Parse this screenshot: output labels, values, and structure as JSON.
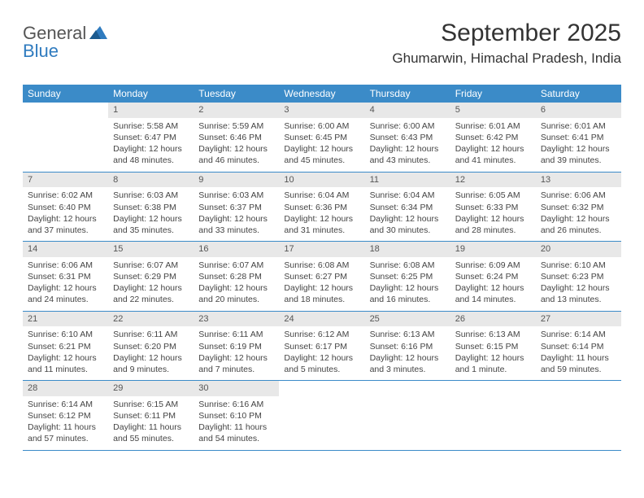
{
  "logo": {
    "text1": "General",
    "text2": "Blue"
  },
  "title": "September 2025",
  "location": "Ghumarwin, Himachal Pradesh, India",
  "colors": {
    "header_bg": "#3b8bc8",
    "header_text": "#ffffff",
    "daynum_bg": "#e8e8e8",
    "border": "#3b8bc8",
    "body_text": "#444444",
    "page_bg": "#ffffff"
  },
  "dayHeaders": [
    "Sunday",
    "Monday",
    "Tuesday",
    "Wednesday",
    "Thursday",
    "Friday",
    "Saturday"
  ],
  "weeks": [
    [
      null,
      {
        "n": "1",
        "sr": "Sunrise: 5:58 AM",
        "ss": "Sunset: 6:47 PM",
        "dl": "Daylight: 12 hours and 48 minutes."
      },
      {
        "n": "2",
        "sr": "Sunrise: 5:59 AM",
        "ss": "Sunset: 6:46 PM",
        "dl": "Daylight: 12 hours and 46 minutes."
      },
      {
        "n": "3",
        "sr": "Sunrise: 6:00 AM",
        "ss": "Sunset: 6:45 PM",
        "dl": "Daylight: 12 hours and 45 minutes."
      },
      {
        "n": "4",
        "sr": "Sunrise: 6:00 AM",
        "ss": "Sunset: 6:43 PM",
        "dl": "Daylight: 12 hours and 43 minutes."
      },
      {
        "n": "5",
        "sr": "Sunrise: 6:01 AM",
        "ss": "Sunset: 6:42 PM",
        "dl": "Daylight: 12 hours and 41 minutes."
      },
      {
        "n": "6",
        "sr": "Sunrise: 6:01 AM",
        "ss": "Sunset: 6:41 PM",
        "dl": "Daylight: 12 hours and 39 minutes."
      }
    ],
    [
      {
        "n": "7",
        "sr": "Sunrise: 6:02 AM",
        "ss": "Sunset: 6:40 PM",
        "dl": "Daylight: 12 hours and 37 minutes."
      },
      {
        "n": "8",
        "sr": "Sunrise: 6:03 AM",
        "ss": "Sunset: 6:38 PM",
        "dl": "Daylight: 12 hours and 35 minutes."
      },
      {
        "n": "9",
        "sr": "Sunrise: 6:03 AM",
        "ss": "Sunset: 6:37 PM",
        "dl": "Daylight: 12 hours and 33 minutes."
      },
      {
        "n": "10",
        "sr": "Sunrise: 6:04 AM",
        "ss": "Sunset: 6:36 PM",
        "dl": "Daylight: 12 hours and 31 minutes."
      },
      {
        "n": "11",
        "sr": "Sunrise: 6:04 AM",
        "ss": "Sunset: 6:34 PM",
        "dl": "Daylight: 12 hours and 30 minutes."
      },
      {
        "n": "12",
        "sr": "Sunrise: 6:05 AM",
        "ss": "Sunset: 6:33 PM",
        "dl": "Daylight: 12 hours and 28 minutes."
      },
      {
        "n": "13",
        "sr": "Sunrise: 6:06 AM",
        "ss": "Sunset: 6:32 PM",
        "dl": "Daylight: 12 hours and 26 minutes."
      }
    ],
    [
      {
        "n": "14",
        "sr": "Sunrise: 6:06 AM",
        "ss": "Sunset: 6:31 PM",
        "dl": "Daylight: 12 hours and 24 minutes."
      },
      {
        "n": "15",
        "sr": "Sunrise: 6:07 AM",
        "ss": "Sunset: 6:29 PM",
        "dl": "Daylight: 12 hours and 22 minutes."
      },
      {
        "n": "16",
        "sr": "Sunrise: 6:07 AM",
        "ss": "Sunset: 6:28 PM",
        "dl": "Daylight: 12 hours and 20 minutes."
      },
      {
        "n": "17",
        "sr": "Sunrise: 6:08 AM",
        "ss": "Sunset: 6:27 PM",
        "dl": "Daylight: 12 hours and 18 minutes."
      },
      {
        "n": "18",
        "sr": "Sunrise: 6:08 AM",
        "ss": "Sunset: 6:25 PM",
        "dl": "Daylight: 12 hours and 16 minutes."
      },
      {
        "n": "19",
        "sr": "Sunrise: 6:09 AM",
        "ss": "Sunset: 6:24 PM",
        "dl": "Daylight: 12 hours and 14 minutes."
      },
      {
        "n": "20",
        "sr": "Sunrise: 6:10 AM",
        "ss": "Sunset: 6:23 PM",
        "dl": "Daylight: 12 hours and 13 minutes."
      }
    ],
    [
      {
        "n": "21",
        "sr": "Sunrise: 6:10 AM",
        "ss": "Sunset: 6:21 PM",
        "dl": "Daylight: 12 hours and 11 minutes."
      },
      {
        "n": "22",
        "sr": "Sunrise: 6:11 AM",
        "ss": "Sunset: 6:20 PM",
        "dl": "Daylight: 12 hours and 9 minutes."
      },
      {
        "n": "23",
        "sr": "Sunrise: 6:11 AM",
        "ss": "Sunset: 6:19 PM",
        "dl": "Daylight: 12 hours and 7 minutes."
      },
      {
        "n": "24",
        "sr": "Sunrise: 6:12 AM",
        "ss": "Sunset: 6:17 PM",
        "dl": "Daylight: 12 hours and 5 minutes."
      },
      {
        "n": "25",
        "sr": "Sunrise: 6:13 AM",
        "ss": "Sunset: 6:16 PM",
        "dl": "Daylight: 12 hours and 3 minutes."
      },
      {
        "n": "26",
        "sr": "Sunrise: 6:13 AM",
        "ss": "Sunset: 6:15 PM",
        "dl": "Daylight: 12 hours and 1 minute."
      },
      {
        "n": "27",
        "sr": "Sunrise: 6:14 AM",
        "ss": "Sunset: 6:14 PM",
        "dl": "Daylight: 11 hours and 59 minutes."
      }
    ],
    [
      {
        "n": "28",
        "sr": "Sunrise: 6:14 AM",
        "ss": "Sunset: 6:12 PM",
        "dl": "Daylight: 11 hours and 57 minutes."
      },
      {
        "n": "29",
        "sr": "Sunrise: 6:15 AM",
        "ss": "Sunset: 6:11 PM",
        "dl": "Daylight: 11 hours and 55 minutes."
      },
      {
        "n": "30",
        "sr": "Sunrise: 6:16 AM",
        "ss": "Sunset: 6:10 PM",
        "dl": "Daylight: 11 hours and 54 minutes."
      },
      null,
      null,
      null,
      null
    ]
  ]
}
